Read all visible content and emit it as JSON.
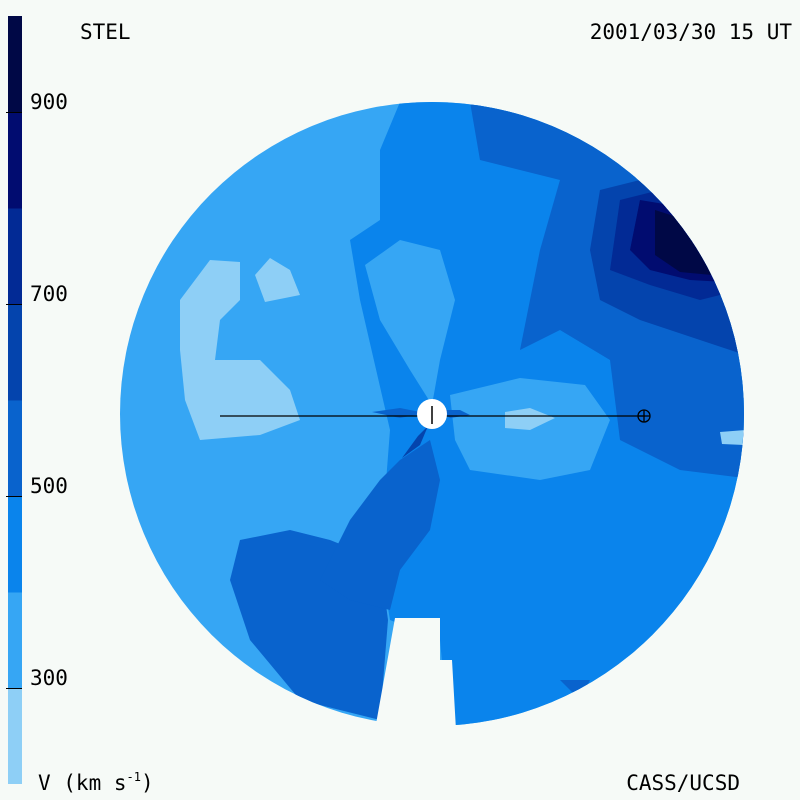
{
  "header": {
    "station": "STEL",
    "timestamp": "2001/03/30 15 UT"
  },
  "footer": {
    "credit": "CASS/UCSD",
    "unit_label": "V (km s",
    "unit_exp": "-1",
    "unit_close": ")"
  },
  "colorbar": {
    "min": 200,
    "max": 1000,
    "step": 100,
    "tick_labels": [
      "900",
      "700",
      "500",
      "300"
    ],
    "tick_values": [
      900,
      700,
      500,
      300
    ],
    "colors": [
      "#8ecff6",
      "#36a6f4",
      "#0a84ec",
      "#0963cd",
      "#0444ad",
      "#022a95",
      "#010c70",
      "#000846"
    ]
  }
}
